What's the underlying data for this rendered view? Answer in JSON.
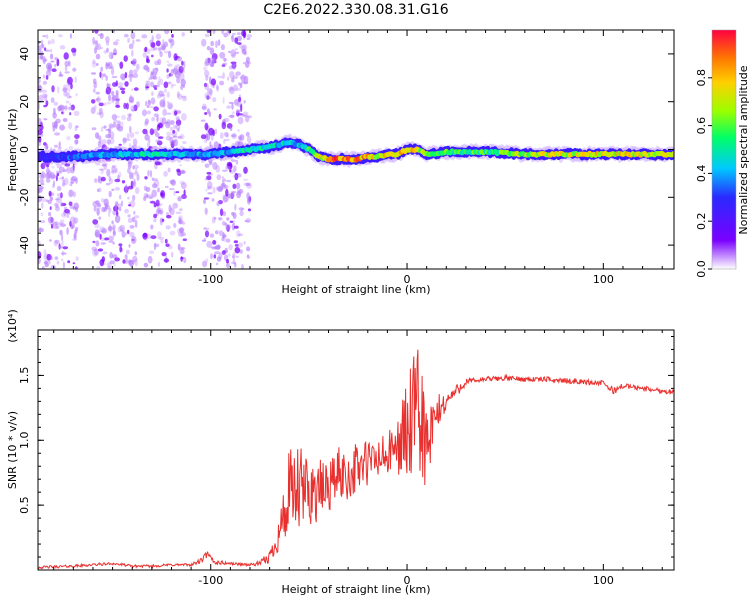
{
  "title": "C2E6.2022.330.08.31.G16",
  "colors": {
    "snr_line": "#e8302e",
    "axis": "#000000",
    "spectrogram_scatter": "#8a2be2",
    "colormap": [
      "#ffffff",
      "#7a00ff",
      "#2a2aff",
      "#00c8ff",
      "#00ff66",
      "#9aff00",
      "#ffd000",
      "#ff7a00",
      "#ff0000"
    ]
  },
  "chart_data": [
    {
      "type": "heatmap",
      "panel": "spectrogram",
      "xlabel": "Height of straight line (km)",
      "ylabel": "Frequency (Hz)",
      "xlim": [
        -188,
        136
      ],
      "ylim": [
        -50,
        50
      ],
      "xticks": [
        "-100",
        "0",
        "100"
      ],
      "yticks": [
        "-40",
        "-20",
        "0",
        "20",
        "40"
      ],
      "colorbar": {
        "label": "Normalized spectral amplitude",
        "range": [
          0,
          1
        ],
        "ticks": [
          "0.0",
          "0.2",
          "0.4",
          "0.6",
          "0.8"
        ]
      },
      "ridge": {
        "x": [
          -188,
          -170,
          -150,
          -130,
          -110,
          -100,
          -90,
          -80,
          -70,
          -60,
          -55,
          -50,
          -45,
          -40,
          -35,
          -30,
          -25,
          -20,
          -15,
          -10,
          -5,
          0,
          5,
          10,
          20,
          40,
          60,
          80,
          100,
          120,
          136
        ],
        "frequency": [
          -3,
          -3,
          -2,
          -2,
          -2,
          -2,
          -1,
          0,
          1,
          3,
          2,
          0,
          -3,
          -4,
          -4,
          -4,
          -4,
          -3,
          -3,
          -2,
          -2,
          0,
          0,
          -2,
          -1,
          -1,
          -2,
          -2,
          -2,
          -2,
          -2
        ],
        "amplitude": [
          0.3,
          0.35,
          0.45,
          0.5,
          0.45,
          0.4,
          0.45,
          0.55,
          0.5,
          0.45,
          0.45,
          0.6,
          0.75,
          0.85,
          0.95,
          0.9,
          0.95,
          0.85,
          0.8,
          0.8,
          0.85,
          0.9,
          0.85,
          0.6,
          0.6,
          0.6,
          0.7,
          0.75,
          0.8,
          0.75,
          0.75
        ]
      },
      "scatter_columns_km": [
        [
          -188,
          -168
        ],
        [
          -160,
          -137
        ],
        [
          -134,
          -113
        ],
        [
          -104,
          -80
        ]
      ]
    },
    {
      "type": "line",
      "panel": "snr",
      "xlabel": "Height of straight line (km)",
      "ylabel": "SNR (10 * v/v)",
      "multiplier": "(x10⁴)",
      "xlim": [
        -188,
        136
      ],
      "ylim": [
        0,
        1.85
      ],
      "xticks": [
        "-100",
        "0",
        "100"
      ],
      "yticks": [
        "0.5",
        "1.0",
        "1.5"
      ],
      "series": [
        {
          "x": [
            -188,
            -170,
            -160,
            -150,
            -140,
            -130,
            -120,
            -110,
            -105,
            -102,
            -98,
            -90,
            -80,
            -75,
            -70,
            -66,
            -62,
            -60,
            -55,
            -50,
            -45,
            -40,
            -35,
            -30,
            -25,
            -20,
            -15,
            -10,
            -5,
            0,
            3,
            5,
            8,
            10,
            12,
            15,
            20,
            25,
            30,
            35,
            40,
            50,
            60,
            70,
            80,
            90,
            100,
            105,
            110,
            120,
            130,
            136
          ],
          "y": [
            0.02,
            0.03,
            0.04,
            0.05,
            0.03,
            0.03,
            0.04,
            0.04,
            0.07,
            0.12,
            0.06,
            0.05,
            0.04,
            0.05,
            0.1,
            0.25,
            0.45,
            0.55,
            0.6,
            0.62,
            0.6,
            0.65,
            0.75,
            0.72,
            0.8,
            0.82,
            0.85,
            0.88,
            0.95,
            1.08,
            1.12,
            1.2,
            1.15,
            0.9,
            1.0,
            1.2,
            1.3,
            1.38,
            1.45,
            1.46,
            1.47,
            1.48,
            1.47,
            1.47,
            1.46,
            1.45,
            1.44,
            1.38,
            1.42,
            1.4,
            1.38,
            1.37
          ],
          "noise_amplitude": [
            0.01,
            0.01,
            0.01,
            0.01,
            0.01,
            0.01,
            0.01,
            0.01,
            0.02,
            0.03,
            0.02,
            0.01,
            0.01,
            0.02,
            0.05,
            0.12,
            0.28,
            0.38,
            0.35,
            0.3,
            0.25,
            0.22,
            0.2,
            0.2,
            0.2,
            0.2,
            0.18,
            0.18,
            0.2,
            0.45,
            0.5,
            0.55,
            0.5,
            0.4,
            0.3,
            0.15,
            0.08,
            0.05,
            0.03,
            0.02,
            0.02,
            0.02,
            0.02,
            0.02,
            0.02,
            0.02,
            0.02,
            0.03,
            0.02,
            0.02,
            0.02,
            0.02
          ]
        }
      ]
    }
  ]
}
